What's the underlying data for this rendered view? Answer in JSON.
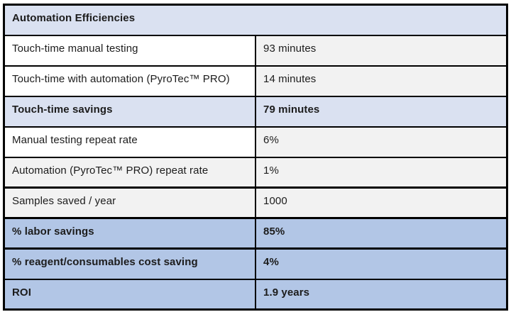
{
  "table": {
    "title": "Automation Efficiencies",
    "rows": [
      {
        "label": "Touch-time manual testing",
        "value": "93 minutes",
        "style": "plain"
      },
      {
        "label": "Touch-time with automation (PyroTec™ PRO)",
        "value": "14 minutes",
        "style": "plain"
      },
      {
        "label": "Touch-time savings",
        "value": "79 minutes",
        "style": "highlight-light"
      },
      {
        "label": "Manual testing repeat rate",
        "value": "6%",
        "style": "plain"
      },
      {
        "label": "Automation (PyroTec™ PRO) repeat rate",
        "value": "1%",
        "style": "plain-shaded"
      },
      {
        "label": "Samples saved / year",
        "value": "1000",
        "style": "plain-shaded"
      },
      {
        "label": "% labor savings",
        "value": "85%",
        "style": "highlight-strong"
      },
      {
        "label": "% reagent/consumables cost saving",
        "value": "4%",
        "style": "highlight-strong"
      },
      {
        "label": "ROI",
        "value": "1.9 years",
        "style": "highlight-strong"
      }
    ],
    "colors": {
      "title_background": "#dae1f1",
      "highlight_light_background": "#dae1f1",
      "highlight_strong_background": "#b2c6e6",
      "value_cell_background": "#f2f2f2",
      "border": "#000000",
      "text": "#1c1c1c"
    }
  }
}
